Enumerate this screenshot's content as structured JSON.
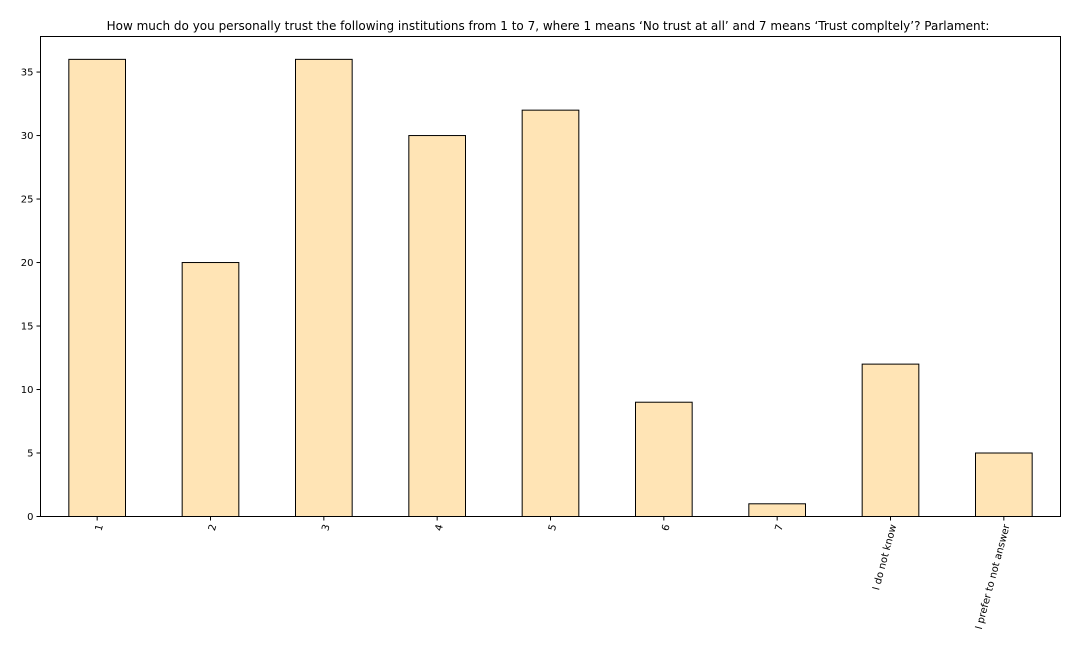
{
  "chart_data": {
    "type": "bar",
    "title": "How much do you personally trust the following institutions from 1 to 7, where 1 means ‘No trust at all’ and 7 means ‘Trust compltely’? Parlament:",
    "xlabel": "",
    "ylabel": "",
    "categories": [
      "1",
      "2",
      "3",
      "4",
      "5",
      "6",
      "7",
      "I do not know",
      "I prefer to not answer"
    ],
    "values": [
      36,
      20,
      36,
      30,
      32,
      9,
      1,
      12,
      5
    ],
    "ylim": [
      0,
      37.8
    ],
    "yticks": [
      0,
      5,
      10,
      15,
      20,
      25,
      30,
      35
    ],
    "x_tick_rotation_deg": 75,
    "grid": false,
    "legend": "none",
    "colors": {
      "bar_fill": "#ffe4b5",
      "bar_edge": "#000000",
      "axis": "#000000",
      "background": "#ffffff"
    }
  }
}
